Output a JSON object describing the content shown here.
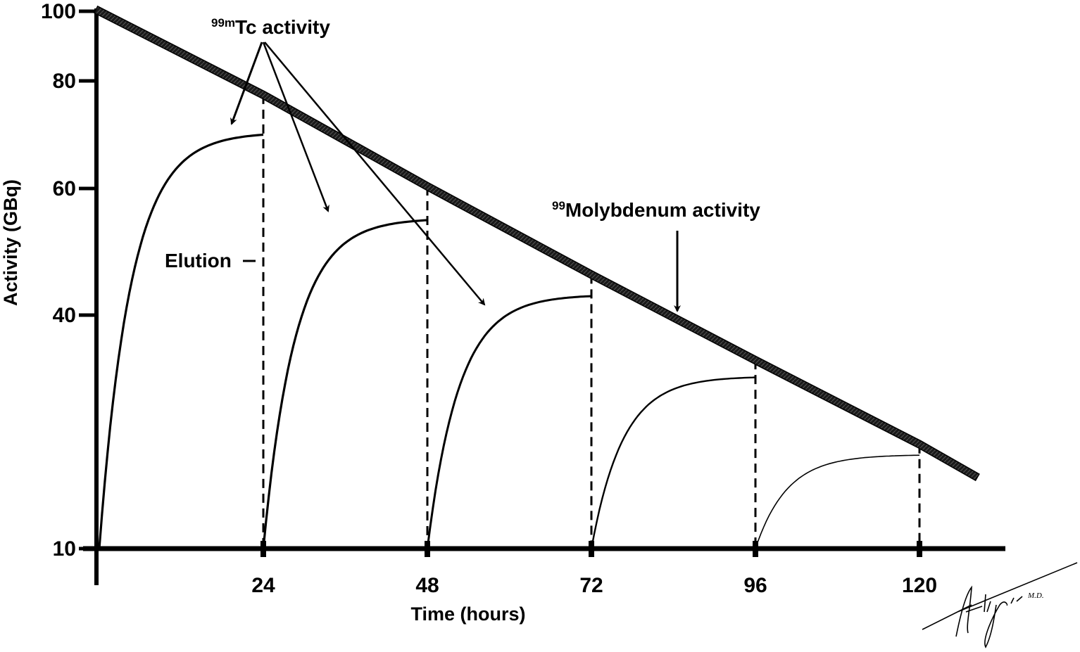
{
  "chart_data": {
    "type": "line",
    "title": "",
    "xlabel": "Time (hours)",
    "ylabel": "Activity (GBq)",
    "x_ticks": [
      24,
      48,
      72,
      96,
      120
    ],
    "y_ticks": [
      100,
      80,
      60,
      40,
      10
    ],
    "xlim": [
      0,
      128
    ],
    "ylim": [
      10,
      100
    ],
    "grid": false,
    "colors": {
      "ink": "#000000",
      "mo_line": "#1e1e1e"
    },
    "series": [
      {
        "name": "99Molybdenum activity",
        "style": "thick-textured",
        "x": [
          0,
          24,
          48,
          72,
          96,
          120,
          128
        ],
        "y": [
          100,
          77.4,
          60.4,
          46.4,
          34.2,
          23.4,
          19.4
        ]
      },
      {
        "name": "99mTc activity",
        "style": "buildup-curves",
        "cycles": [
          {
            "start": 0,
            "end": 24,
            "peak": 70
          },
          {
            "start": 24,
            "end": 48,
            "peak": 55
          },
          {
            "start": 48,
            "end": 72,
            "peak": 43
          },
          {
            "start": 72,
            "end": 96,
            "peak": 32
          },
          {
            "start": 96,
            "end": 120,
            "peak": 22
          }
        ]
      }
    ],
    "elution_times": [
      24,
      48,
      72,
      96,
      120
    ],
    "annotations": {
      "tc_label_sup": "99m",
      "tc_label": "Tc activity",
      "mo_label_sup": "99",
      "mo_label": "Molybdenum activity",
      "elution": "Elution"
    },
    "signature": "Alijani M.D."
  }
}
